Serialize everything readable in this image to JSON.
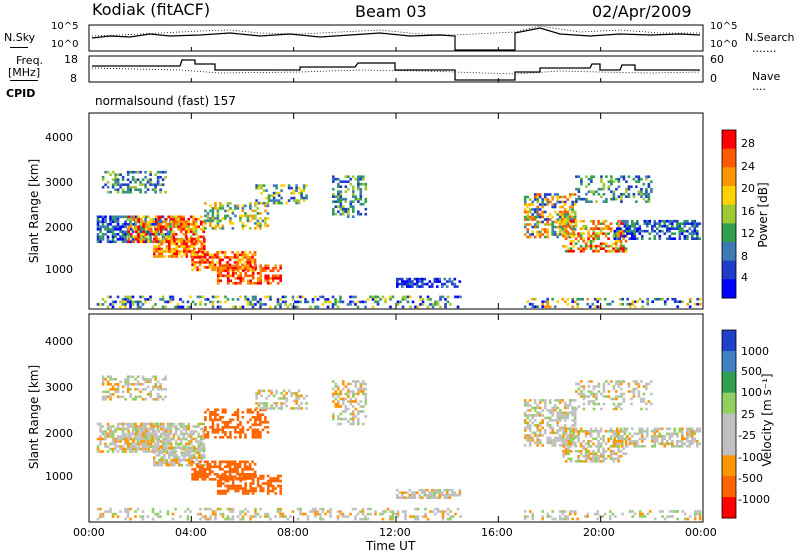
{
  "header": {
    "station": "Kodiak (fitACF)",
    "beam": "Beam 03",
    "date": "02/Apr/2009"
  },
  "left_labels": {
    "nsky": "N.Sky",
    "freq": "Freq.",
    "freq_unit": "[MHz]",
    "cpid": "CPID"
  },
  "right_labels": {
    "nsearch": "N.Search",
    "nave": "Nave",
    "dots": "......."
  },
  "cpid_text": "normalsound (fast) 157",
  "small_axes": {
    "noise_left_ticks": [
      "10^5",
      "10^0"
    ],
    "noise_right_ticks": [
      "10^5",
      "10^0"
    ],
    "freq_left_ticks": [
      "18",
      "8"
    ],
    "freq_right_ticks": [
      "60",
      "0"
    ]
  },
  "chart_data": [
    {
      "type": "heatmap",
      "panel": "power",
      "ylabel": "Slant Range [km]",
      "y_ticks": [
        "1000",
        "2000",
        "3000",
        "4000"
      ],
      "ylim": [
        200,
        4600
      ],
      "x_ticks": [
        "00:00",
        "04:00",
        "08:00",
        "12:00",
        "16:00",
        "20:00",
        "00:00"
      ],
      "xlim_hours": [
        0,
        24
      ],
      "data_gap_hours": [
        14.6,
        16.9
      ],
      "colorbar": {
        "label": "Power [dB]",
        "ticks": [
          "28",
          "24",
          "20",
          "16",
          "12",
          "8",
          "4"
        ],
        "colors": [
          "#ff0000",
          "#ff5a00",
          "#ff9600",
          "#ffd200",
          "#a0c832",
          "#30a050",
          "#3c7ab4",
          "#1e3cc8",
          "#0000ff"
        ]
      }
    },
    {
      "type": "heatmap",
      "panel": "velocity",
      "ylabel": "Slant Range [km]",
      "y_ticks": [
        "1000",
        "2000",
        "3000",
        "4000"
      ],
      "ylim": [
        200,
        4600
      ],
      "x_ticks": [
        "00:00",
        "04:00",
        "08:00",
        "12:00",
        "16:00",
        "20:00",
        "00:00"
      ],
      "xlabel": "Time UT",
      "xlim_hours": [
        0,
        24
      ],
      "data_gap_hours": [
        14.6,
        16.9
      ],
      "colorbar": {
        "label": "Velocity [m s⁻¹]",
        "ticks": [
          "1000",
          "500",
          "100",
          "25",
          "-25",
          "-100",
          "-500",
          "-1000"
        ],
        "colors": [
          "#2040c8",
          "#4080c0",
          "#30a050",
          "#90d060",
          "#c0c0c0",
          "#c0c0c0",
          "#ff9600",
          "#ff6400",
          "#ff0000"
        ]
      }
    }
  ]
}
